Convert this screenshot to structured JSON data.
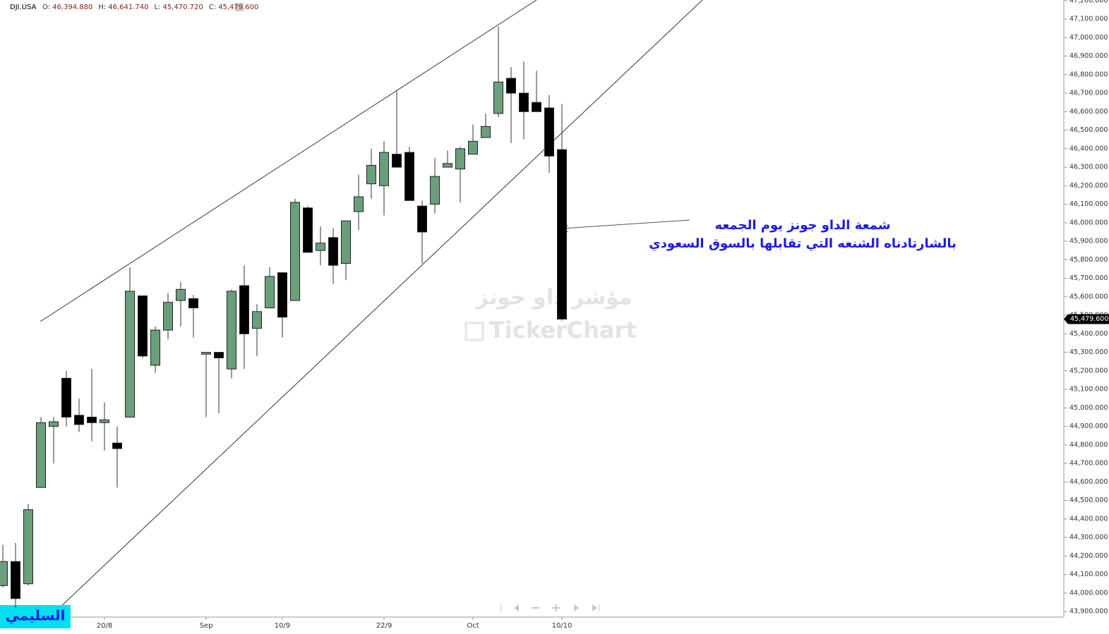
{
  "chart_data": {
    "type": "candlestick",
    "symbol": "DJI.USA",
    "ohlc_header": [
      {
        "key": "O:",
        "text": "46,394.880"
      },
      {
        "key": "H:",
        "text": "46,641.740"
      },
      {
        "key": "L:",
        "text": "45,470.720"
      },
      {
        "key": "C:",
        "text": "45,479.600"
      }
    ],
    "categories": [
      null,
      null,
      null,
      null,
      null,
      null,
      null,
      null,
      "20/8",
      null,
      null,
      null,
      null,
      null,
      null,
      null,
      "Sep",
      null,
      null,
      null,
      null,
      null,
      "10/9",
      null,
      null,
      null,
      null,
      null,
      null,
      null,
      "22/9",
      null,
      null,
      null,
      null,
      null,
      null,
      "Oct",
      null,
      null,
      null,
      null,
      null,
      null,
      "10/10"
    ],
    "open": [
      44040,
      44170,
      44050,
      44570,
      44900,
      45160,
      44960,
      44950,
      44920,
      44810,
      44950,
      45605,
      45230,
      45420,
      45580,
      45590,
      45290,
      45300,
      45210,
      45660,
      45430,
      45540,
      45730,
      45580,
      46080,
      45850,
      45920,
      45780,
      46060,
      46210,
      46200,
      46370,
      46380,
      46090,
      46100,
      46300,
      46290,
      46370,
      46460,
      46590,
      46780,
      46700,
      46650,
      46620,
      46394.88
    ],
    "high": [
      44260,
      44270,
      44480,
      44950,
      44950,
      45200,
      45050,
      45210,
      45030,
      44900,
      45760,
      45605,
      45440,
      45620,
      45680,
      45610,
      45300,
      45300,
      45640,
      45770,
      45560,
      45760,
      45730,
      46130,
      46090,
      45980,
      45970,
      46010,
      46260,
      46400,
      46440,
      46710,
      46410,
      46120,
      46350,
      46390,
      46410,
      46530,
      46590,
      47060,
      46840,
      46870,
      46820,
      46690,
      46641.74
    ],
    "low": [
      44030,
      43920,
      44040,
      44570,
      44700,
      44900,
      44870,
      44820,
      44770,
      44570,
      44950,
      45270,
      45190,
      45370,
      45440,
      45380,
      44950,
      44970,
      45160,
      45210,
      45280,
      45540,
      45380,
      45580,
      45840,
      45770,
      45670,
      45690,
      45960,
      46130,
      46040,
      46300,
      46120,
      45780,
      46050,
      46300,
      46110,
      46370,
      46460,
      46570,
      46430,
      46450,
      46600,
      46270,
      45470.72
    ],
    "close": [
      44170,
      43970,
      44450,
      44920,
      44925,
      44950,
      44910,
      44920,
      44935,
      44780,
      45630,
      45280,
      45420,
      45570,
      45640,
      45540,
      45300,
      45270,
      45630,
      45400,
      45520,
      45710,
      45490,
      46110,
      45840,
      45890,
      45770,
      46010,
      46140,
      46310,
      46380,
      46300,
      46120,
      45950,
      46250,
      46320,
      46400,
      46440,
      46520,
      46760,
      46700,
      46600,
      46600,
      46360,
      45479.6
    ],
    "up_color": "#6a9f7b",
    "down_color": "#000000",
    "last_price_label": "45,479.600",
    "ylim": [
      43870,
      47203
    ],
    "yticks": [
      {
        "value": 43900,
        "label": "43,900.000"
      },
      {
        "value": 44000,
        "label": "44,000.000"
      },
      {
        "value": 44100,
        "label": "44,100.000"
      },
      {
        "value": 44200,
        "label": "44,200.000"
      },
      {
        "value": 44300,
        "label": "44,300.000"
      },
      {
        "value": 44400,
        "label": "44,400.000"
      },
      {
        "value": 44500,
        "label": "44,500.000"
      },
      {
        "value": 44600,
        "label": "44,600.000"
      },
      {
        "value": 44700,
        "label": "44,700.000"
      },
      {
        "value": 44800,
        "label": "44,800.000"
      },
      {
        "value": 44900,
        "label": "44,900.000"
      },
      {
        "value": 45000,
        "label": "45,000.000"
      },
      {
        "value": 45100,
        "label": "45,100.000"
      },
      {
        "value": 45200,
        "label": "45,200.000"
      },
      {
        "value": 45300,
        "label": "45,300.000"
      },
      {
        "value": 45400,
        "label": "45,400.000"
      },
      {
        "value": 45500,
        "label": "45,500.000"
      },
      {
        "value": 45600,
        "label": "45,600.000"
      },
      {
        "value": 45700,
        "label": "45,700.000"
      },
      {
        "value": 45800,
        "label": "45,800.000"
      },
      {
        "value": 45900,
        "label": "45,900.000"
      },
      {
        "value": 46000,
        "label": "46,000.000"
      },
      {
        "value": 46100,
        "label": "46,100.000"
      },
      {
        "value": 46200,
        "label": "46,200.000"
      },
      {
        "value": 46300,
        "label": "46,300.000"
      },
      {
        "value": 46400,
        "label": "46,400.000"
      },
      {
        "value": 46500,
        "label": "46,500.000"
      },
      {
        "value": 46600,
        "label": "46,600.000"
      },
      {
        "value": 46700,
        "label": "46,700.000"
      },
      {
        "value": 46800,
        "label": "46,800.000"
      },
      {
        "value": 46900,
        "label": "46,900.000"
      },
      {
        "value": 47000,
        "label": "47,000.000"
      },
      {
        "value": 47100,
        "label": "47,100.000"
      },
      {
        "value": 47200,
        "label": "47,200.000"
      }
    ],
    "annotation_lines": [
      "شمعة الداو جونز يوم الجمعه",
      "بالشارتادناه الشنعه التي تقابلها بالسوق السعودي"
    ],
    "watermark": [
      "مؤشر داو جونز",
      "TickerChart"
    ],
    "logo": "السليمي"
  }
}
